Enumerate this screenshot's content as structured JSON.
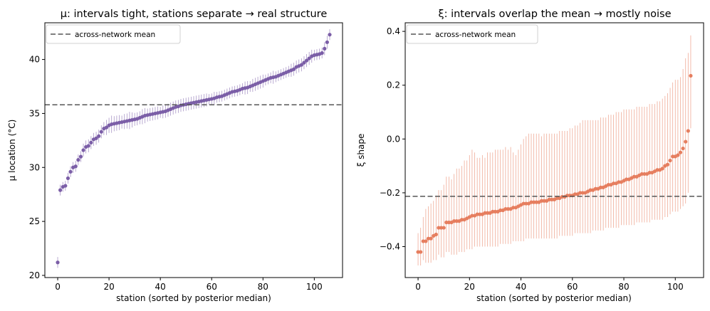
{
  "chart_data": [
    {
      "type": "scatter",
      "title": "μ: intervals tight, stations separate  →  real structure",
      "xlabel": "station (sorted by posterior median)",
      "ylabel": "μ  location (°C)",
      "xlim": [
        -5,
        111
      ],
      "ylim": [
        19.8,
        43.4
      ],
      "xticks": [
        0,
        20,
        40,
        60,
        80,
        100
      ],
      "yticks": [
        20,
        25,
        30,
        35,
        40
      ],
      "xtick_labels": [
        "0",
        "20",
        "40",
        "60",
        "80",
        "100"
      ],
      "ytick_labels": [
        "20",
        "25",
        "30",
        "35",
        "40"
      ],
      "grid": false,
      "legend": {
        "position": "upper-left",
        "label": "across-network mean"
      },
      "mean_line": 35.8,
      "color": "#7b5ea7",
      "x_start": 0,
      "values": [
        21.2,
        27.9,
        28.2,
        28.3,
        29.0,
        29.6,
        30.0,
        30.1,
        30.7,
        31.0,
        31.6,
        31.9,
        32.0,
        32.3,
        32.6,
        32.7,
        32.9,
        33.3,
        33.6,
        33.7,
        33.9,
        34.0,
        34.05,
        34.1,
        34.15,
        34.2,
        34.25,
        34.3,
        34.35,
        34.4,
        34.45,
        34.5,
        34.6,
        34.7,
        34.8,
        34.85,
        34.9,
        34.95,
        35.0,
        35.05,
        35.1,
        35.15,
        35.2,
        35.3,
        35.4,
        35.5,
        35.6,
        35.65,
        35.75,
        35.8,
        35.85,
        35.9,
        35.95,
        36.0,
        36.05,
        36.1,
        36.15,
        36.2,
        36.25,
        36.3,
        36.35,
        36.4,
        36.5,
        36.55,
        36.6,
        36.7,
        36.8,
        36.9,
        37.0,
        37.05,
        37.1,
        37.2,
        37.3,
        37.35,
        37.4,
        37.5,
        37.6,
        37.7,
        37.8,
        37.9,
        38.0,
        38.1,
        38.2,
        38.3,
        38.35,
        38.4,
        38.5,
        38.6,
        38.7,
        38.8,
        38.9,
        39.0,
        39.1,
        39.3,
        39.4,
        39.5,
        39.7,
        39.9,
        40.1,
        40.3,
        40.4,
        40.45,
        40.5,
        40.6,
        41.0,
        41.6,
        42.3
      ],
      "half_widths": [
        0.5,
        0.5,
        0.45,
        0.45,
        0.5,
        0.5,
        0.5,
        0.5,
        0.5,
        0.5,
        0.6,
        0.6,
        0.6,
        0.6,
        0.6,
        0.6,
        0.6,
        0.6,
        0.6,
        0.7,
        0.7,
        0.8,
        0.7,
        0.7,
        0.7,
        0.6,
        0.7,
        0.7,
        0.8,
        0.7,
        0.6,
        0.6,
        0.6,
        0.7,
        0.7,
        0.6,
        0.6,
        0.6,
        0.6,
        0.6,
        0.5,
        0.6,
        0.6,
        0.6,
        0.6,
        0.6,
        0.6,
        0.6,
        0.6,
        0.6,
        0.6,
        0.6,
        0.6,
        0.6,
        0.6,
        0.6,
        0.6,
        0.6,
        0.6,
        0.5,
        0.5,
        0.6,
        0.5,
        0.5,
        0.5,
        0.5,
        0.5,
        0.5,
        0.5,
        0.5,
        0.5,
        0.5,
        0.5,
        0.6,
        0.6,
        0.5,
        0.6,
        0.6,
        0.6,
        0.6,
        0.6,
        0.5,
        0.5,
        0.5,
        0.6,
        0.5,
        0.5,
        0.5,
        0.5,
        0.5,
        0.5,
        0.6,
        0.6,
        0.6,
        0.6,
        0.6,
        0.6,
        0.6,
        0.6,
        0.6,
        0.5,
        0.5,
        0.5,
        0.5,
        0.6,
        0.6,
        0.5
      ]
    },
    {
      "type": "scatter",
      "title": "ξ: intervals overlap the mean  →  mostly noise",
      "xlabel": "station (sorted by posterior median)",
      "ylabel": "ξ  shape",
      "xlim": [
        -5,
        111
      ],
      "ylim": [
        -0.515,
        0.432
      ],
      "xticks": [
        0,
        20,
        40,
        60,
        80,
        100
      ],
      "yticks": [
        -0.4,
        -0.2,
        0.0,
        0.2,
        0.4
      ],
      "xtick_labels": [
        "0",
        "20",
        "40",
        "60",
        "80",
        "100"
      ],
      "ytick_labels": [
        "−0.4",
        "−0.2",
        "0.0",
        "0.2",
        "0.4"
      ],
      "grid": false,
      "legend": {
        "position": "upper-left",
        "label": "across-network mean"
      },
      "mean_line": -0.213,
      "color": "#e67e5f",
      "x_start": 0,
      "values": [
        -0.42,
        -0.42,
        -0.38,
        -0.38,
        -0.37,
        -0.37,
        -0.36,
        -0.355,
        -0.33,
        -0.33,
        -0.33,
        -0.31,
        -0.31,
        -0.31,
        -0.305,
        -0.305,
        -0.305,
        -0.3,
        -0.3,
        -0.295,
        -0.29,
        -0.285,
        -0.285,
        -0.28,
        -0.28,
        -0.28,
        -0.275,
        -0.275,
        -0.275,
        -0.27,
        -0.27,
        -0.27,
        -0.265,
        -0.265,
        -0.26,
        -0.26,
        -0.26,
        -0.255,
        -0.255,
        -0.25,
        -0.245,
        -0.24,
        -0.24,
        -0.24,
        -0.235,
        -0.235,
        -0.235,
        -0.235,
        -0.23,
        -0.23,
        -0.23,
        -0.225,
        -0.225,
        -0.225,
        -0.22,
        -0.22,
        -0.215,
        -0.215,
        -0.21,
        -0.21,
        -0.21,
        -0.205,
        -0.205,
        -0.2,
        -0.2,
        -0.2,
        -0.195,
        -0.19,
        -0.19,
        -0.185,
        -0.185,
        -0.18,
        -0.18,
        -0.175,
        -0.17,
        -0.17,
        -0.165,
        -0.165,
        -0.16,
        -0.16,
        -0.155,
        -0.15,
        -0.15,
        -0.145,
        -0.14,
        -0.14,
        -0.135,
        -0.13,
        -0.13,
        -0.13,
        -0.125,
        -0.125,
        -0.12,
        -0.115,
        -0.115,
        -0.11,
        -0.1,
        -0.095,
        -0.08,
        -0.065,
        -0.065,
        -0.06,
        -0.05,
        -0.035,
        -0.01,
        0.03,
        0.235
      ],
      "intervals": [
        [
          -0.47,
          -0.35
        ],
        [
          -0.47,
          -0.33
        ],
        [
          -0.45,
          -0.29
        ],
        [
          -0.46,
          -0.26
        ],
        [
          -0.46,
          -0.25
        ],
        [
          -0.46,
          -0.24
        ],
        [
          -0.45,
          -0.23
        ],
        [
          -0.45,
          -0.21
        ],
        [
          -0.43,
          -0.19
        ],
        [
          -0.44,
          -0.19
        ],
        [
          -0.44,
          -0.17
        ],
        [
          -0.42,
          -0.14
        ],
        [
          -0.42,
          -0.14
        ],
        [
          -0.43,
          -0.15
        ],
        [
          -0.43,
          -0.13
        ],
        [
          -0.43,
          -0.11
        ],
        [
          -0.42,
          -0.11
        ],
        [
          -0.42,
          -0.1
        ],
        [
          -0.42,
          -0.08
        ],
        [
          -0.41,
          -0.08
        ],
        [
          -0.41,
          -0.06
        ],
        [
          -0.41,
          -0.04
        ],
        [
          -0.4,
          -0.05
        ],
        [
          -0.4,
          -0.07
        ],
        [
          -0.4,
          -0.07
        ],
        [
          -0.4,
          -0.06
        ],
        [
          -0.4,
          -0.07
        ],
        [
          -0.4,
          -0.05
        ],
        [
          -0.4,
          -0.05
        ],
        [
          -0.4,
          -0.05
        ],
        [
          -0.4,
          -0.04
        ],
        [
          -0.4,
          -0.04
        ],
        [
          -0.39,
          -0.04
        ],
        [
          -0.39,
          -0.04
        ],
        [
          -0.39,
          -0.03
        ],
        [
          -0.39,
          -0.04
        ],
        [
          -0.39,
          -0.03
        ],
        [
          -0.38,
          -0.05
        ],
        [
          -0.38,
          -0.06
        ],
        [
          -0.38,
          -0.04
        ],
        [
          -0.38,
          -0.02
        ],
        [
          -0.38,
          0.0
        ],
        [
          -0.37,
          0.01
        ],
        [
          -0.37,
          0.02
        ],
        [
          -0.37,
          0.02
        ],
        [
          -0.37,
          0.02
        ],
        [
          -0.37,
          0.02
        ],
        [
          -0.37,
          0.02
        ],
        [
          -0.37,
          0.01
        ],
        [
          -0.37,
          0.02
        ],
        [
          -0.37,
          0.02
        ],
        [
          -0.37,
          0.02
        ],
        [
          -0.37,
          0.02
        ],
        [
          -0.37,
          0.02
        ],
        [
          -0.37,
          0.02
        ],
        [
          -0.36,
          0.03
        ],
        [
          -0.36,
          0.03
        ],
        [
          -0.36,
          0.03
        ],
        [
          -0.36,
          0.03
        ],
        [
          -0.36,
          0.04
        ],
        [
          -0.36,
          0.04
        ],
        [
          -0.35,
          0.05
        ],
        [
          -0.35,
          0.05
        ],
        [
          -0.35,
          0.06
        ],
        [
          -0.35,
          0.07
        ],
        [
          -0.35,
          0.07
        ],
        [
          -0.35,
          0.07
        ],
        [
          -0.35,
          0.07
        ],
        [
          -0.34,
          0.07
        ],
        [
          -0.34,
          0.07
        ],
        [
          -0.34,
          0.07
        ],
        [
          -0.34,
          0.08
        ],
        [
          -0.34,
          0.08
        ],
        [
          -0.33,
          0.08
        ],
        [
          -0.33,
          0.09
        ],
        [
          -0.33,
          0.09
        ],
        [
          -0.33,
          0.09
        ],
        [
          -0.33,
          0.1
        ],
        [
          -0.33,
          0.1
        ],
        [
          -0.32,
          0.1
        ],
        [
          -0.32,
          0.11
        ],
        [
          -0.32,
          0.11
        ],
        [
          -0.32,
          0.11
        ],
        [
          -0.32,
          0.11
        ],
        [
          -0.32,
          0.11
        ],
        [
          -0.31,
          0.12
        ],
        [
          -0.31,
          0.12
        ],
        [
          -0.31,
          0.12
        ],
        [
          -0.31,
          0.12
        ],
        [
          -0.31,
          0.12
        ],
        [
          -0.31,
          0.13
        ],
        [
          -0.3,
          0.13
        ],
        [
          -0.3,
          0.13
        ],
        [
          -0.3,
          0.14
        ],
        [
          -0.3,
          0.14
        ],
        [
          -0.3,
          0.15
        ],
        [
          -0.29,
          0.16
        ],
        [
          -0.29,
          0.17
        ],
        [
          -0.28,
          0.19
        ],
        [
          -0.27,
          0.21
        ],
        [
          -0.27,
          0.22
        ],
        [
          -0.27,
          0.22
        ],
        [
          -0.26,
          0.23
        ],
        [
          -0.25,
          0.26
        ],
        [
          -0.24,
          0.3
        ],
        [
          -0.2,
          0.32
        ],
        [
          0.04,
          0.385
        ]
      ]
    }
  ]
}
